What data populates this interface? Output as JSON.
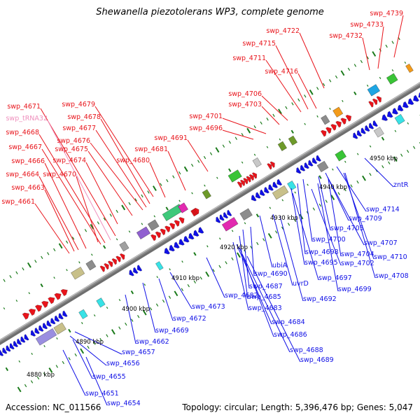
{
  "title": "Shewanella piezotolerans WP3, complete genome",
  "footer": {
    "accession": "Accession: NC_011566",
    "summary": "Topology: circular; Length: 5,396,476 bp; Genes: 5,047"
  },
  "colors": {
    "forward_strand": "#e8141b",
    "reverse_strand": "#1010e6",
    "trna_label": "#ef8fbd",
    "backbone": "#8c8c8c",
    "ticks": "#1a7a1a"
  },
  "kbp_ticks": [
    "4880 kbp",
    "4890 kbp",
    "4900 kbp",
    "4910 kbp",
    "4920 kbp",
    "4930 kbp",
    "4940 kbp",
    "4950 kbp"
  ],
  "forward_labels": [
    "swp_4739",
    "swp_4733",
    "swp_4732",
    "swp_4722",
    "swp_4715",
    "swp_4711",
    "swp_4716",
    "swp_4706",
    "swp_4703",
    "swp_4701",
    "swp_4696",
    "swp_4691",
    "swp_4681",
    "swp_4680",
    "swp_4679",
    "swp_4678",
    "swp_4677",
    "swp_4676",
    "swp_4675",
    "swp_4674",
    "swp_4670",
    "swp_4671",
    "swp_tRNA32",
    "swp_4668",
    "swp_4667",
    "swp_4666",
    "swp_4664",
    "swp_4663",
    "swp_4661"
  ],
  "reverse_labels": [
    "zntR",
    "swp_4714",
    "swp_4709",
    "swp_4705",
    "swp_4707",
    "swp_4700",
    "swp_4704",
    "swp_4710",
    "swp_4698",
    "swp_4702",
    "swp_4708",
    "swp_4695",
    "swp_4697",
    "swp_4699",
    "ubiA",
    "swp_4690",
    "uvrD",
    "swp_4687",
    "swp_4692",
    "swp_4685",
    "swp_4682",
    "swp_4683",
    "swp_4673",
    "swp_4684",
    "swp_4672",
    "swp_4686",
    "swp_4669",
    "swp_4688",
    "swp_4689",
    "swp_4662",
    "swp_4657",
    "swp_4656",
    "swp_4655",
    "swp_4651",
    "swp_4654"
  ]
}
